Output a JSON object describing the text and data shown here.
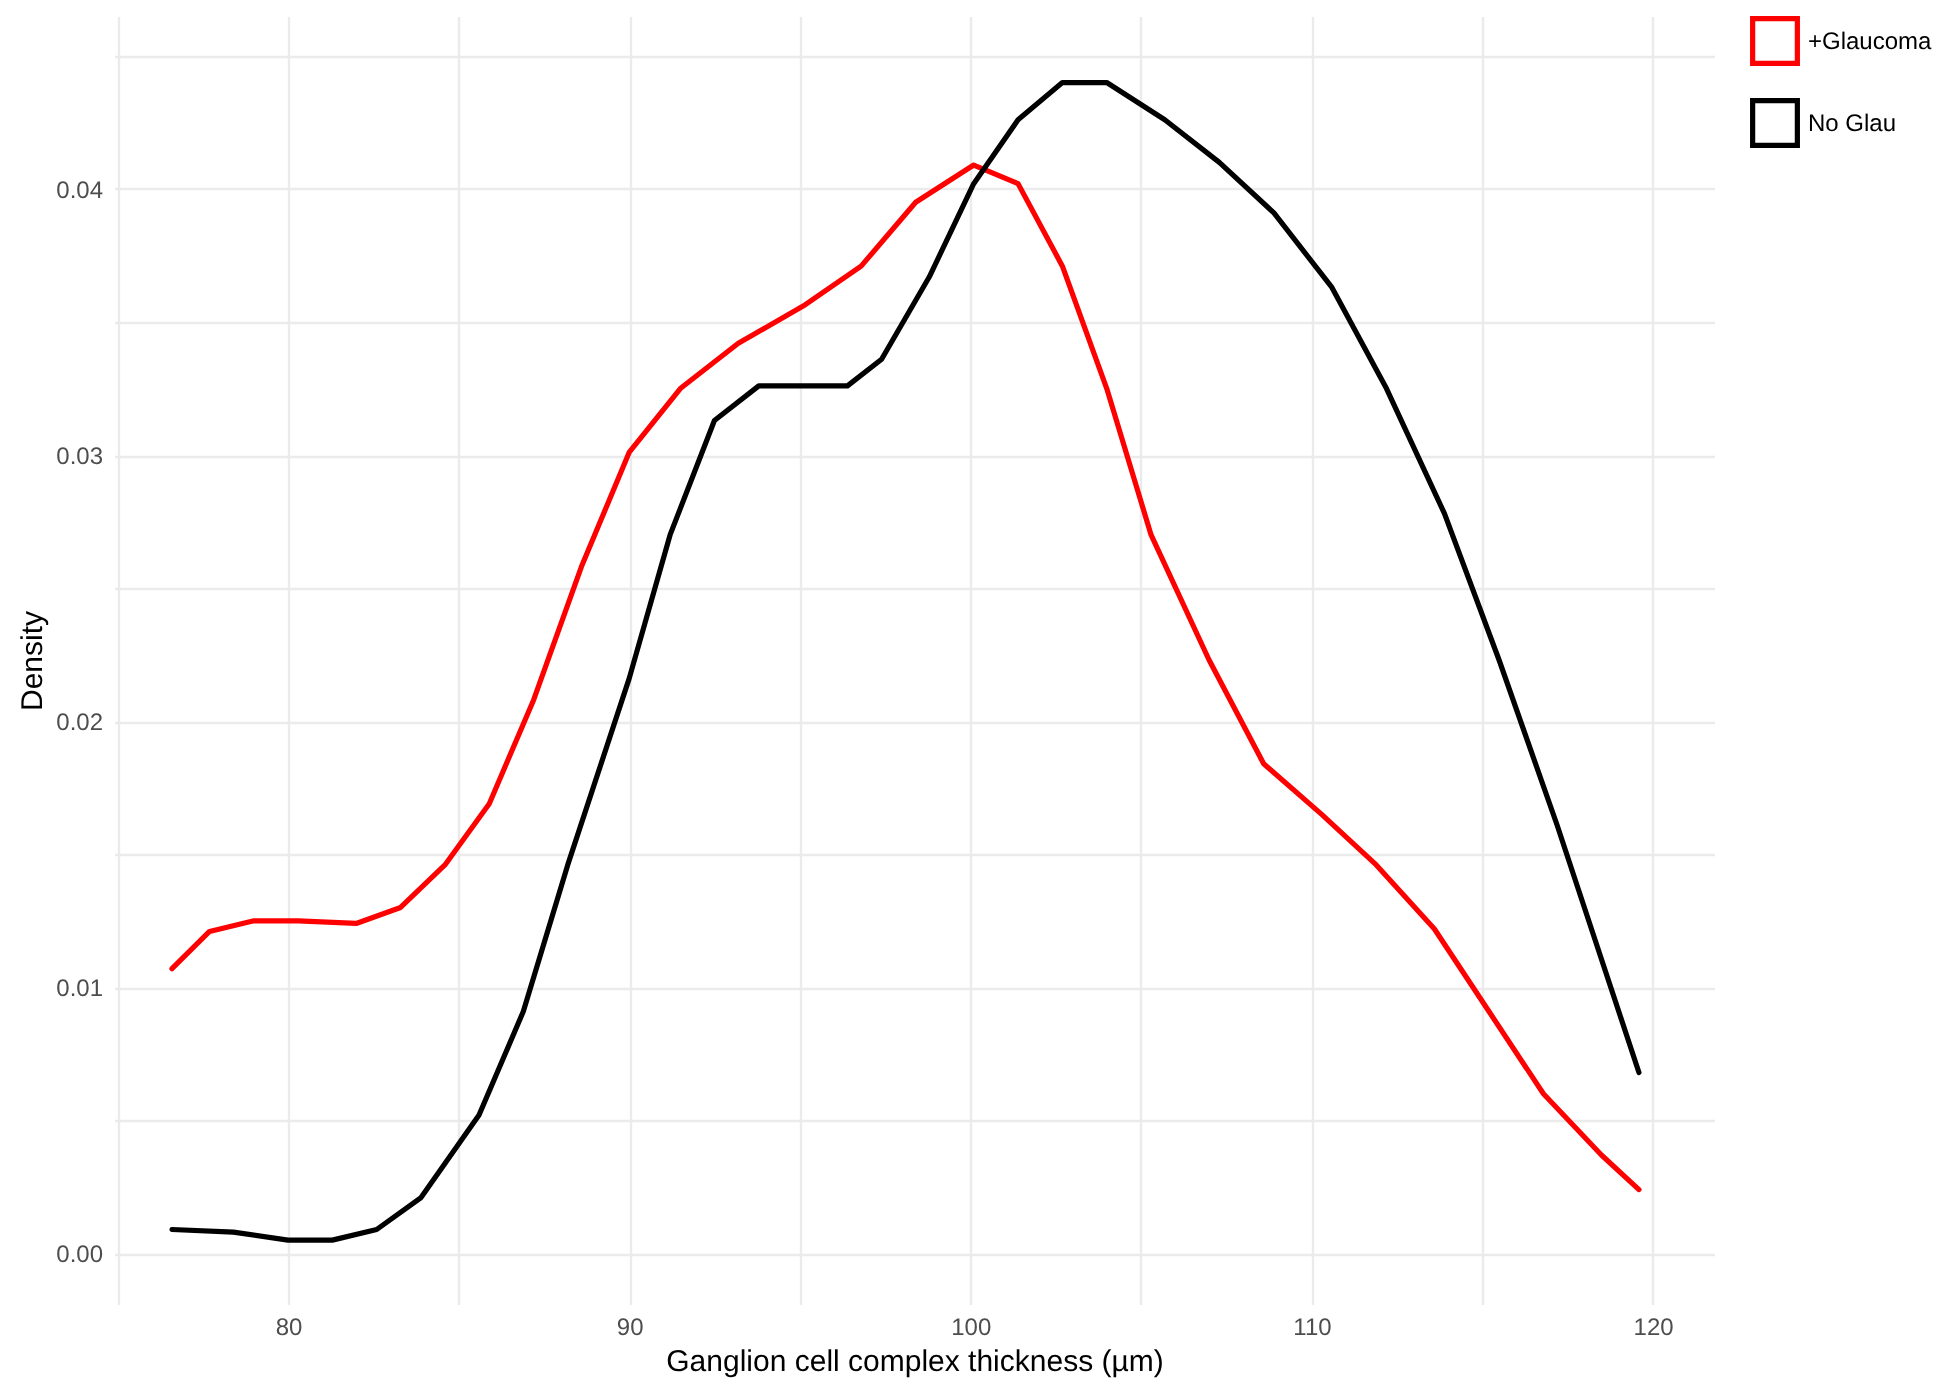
{
  "chart_data": {
    "type": "line",
    "xlabel": "Ganglion cell complex thickness (µm)",
    "ylabel": "Density",
    "legend": "right",
    "grid": true,
    "xlim": [
      74.9,
      121.8
    ],
    "xticks": [
      {
        "value": 75,
        "label": null
      },
      80,
      {
        "value": 85,
        "label": null
      },
      90,
      {
        "value": 95,
        "label": null
      },
      100,
      {
        "value": 105,
        "label": null
      },
      110,
      {
        "value": 115,
        "label": null
      },
      120
    ],
    "ylim": [
      -0.0019,
      0.0465
    ],
    "yticks": [
      {
        "value": 0,
        "label": "0.00"
      },
      {
        "value": 0.005,
        "label": null
      },
      0.01,
      {
        "value": 0.015,
        "label": null
      },
      0.02,
      {
        "value": 0.025,
        "label": null
      },
      0.03,
      {
        "value": 0.035,
        "label": null
      },
      0.04,
      {
        "value": 0.045,
        "label": null
      }
    ],
    "series": [
      {
        "name": "+Glaucoma",
        "color": "#ff0000",
        "x": [
          76.6,
          77.7,
          79.0,
          80.3,
          82.0,
          83.3,
          84.6,
          85.9,
          87.2,
          88.6,
          90,
          91.5,
          93.2,
          95.1,
          96.8,
          98.4,
          100.1,
          101.4,
          102.7,
          104.0,
          105.3,
          107.0,
          108.6,
          110.3,
          111.9,
          113.6,
          115.2,
          116.8,
          118.5,
          119.6
        ],
        "values": [
          0.0107,
          0.0121,
          0.0125,
          0.0125,
          0.0124,
          0.013,
          0.0146,
          0.0169,
          0.0208,
          0.0258,
          0.0301,
          0.0325,
          0.0342,
          0.0356,
          0.0371,
          0.0395,
          0.0409,
          0.0402,
          0.0371,
          0.0325,
          0.027,
          0.0223,
          0.0184,
          0.0165,
          0.0146,
          0.0122,
          0.0091,
          0.006,
          0.0037,
          0.0024
        ]
      },
      {
        "name": "No Glau",
        "color": "#000000",
        "x": [
          76.6,
          78.4,
          80,
          81.3,
          82.6,
          83.9,
          85.6,
          86.9,
          88.2,
          90,
          91.2,
          92.5,
          93.8,
          95.1,
          96.4,
          97.4,
          98.8,
          100.1,
          101.4,
          102.7,
          104.0,
          105.7,
          107.3,
          108.9,
          110.6,
          112.2,
          113.9,
          115.5,
          117.2,
          118.8,
          119.6
        ],
        "values": [
          0.0009,
          0.0008,
          0.0005,
          0.0005,
          0.0009,
          0.0021,
          0.0052,
          0.0091,
          0.0146,
          0.0216,
          0.027,
          0.0313,
          0.0326,
          0.0326,
          0.0326,
          0.0336,
          0.0367,
          0.0402,
          0.0426,
          0.044,
          0.044,
          0.0426,
          0.041,
          0.0391,
          0.0363,
          0.0325,
          0.0278,
          0.0223,
          0.0161,
          0.0099,
          0.0068
        ]
      }
    ]
  }
}
